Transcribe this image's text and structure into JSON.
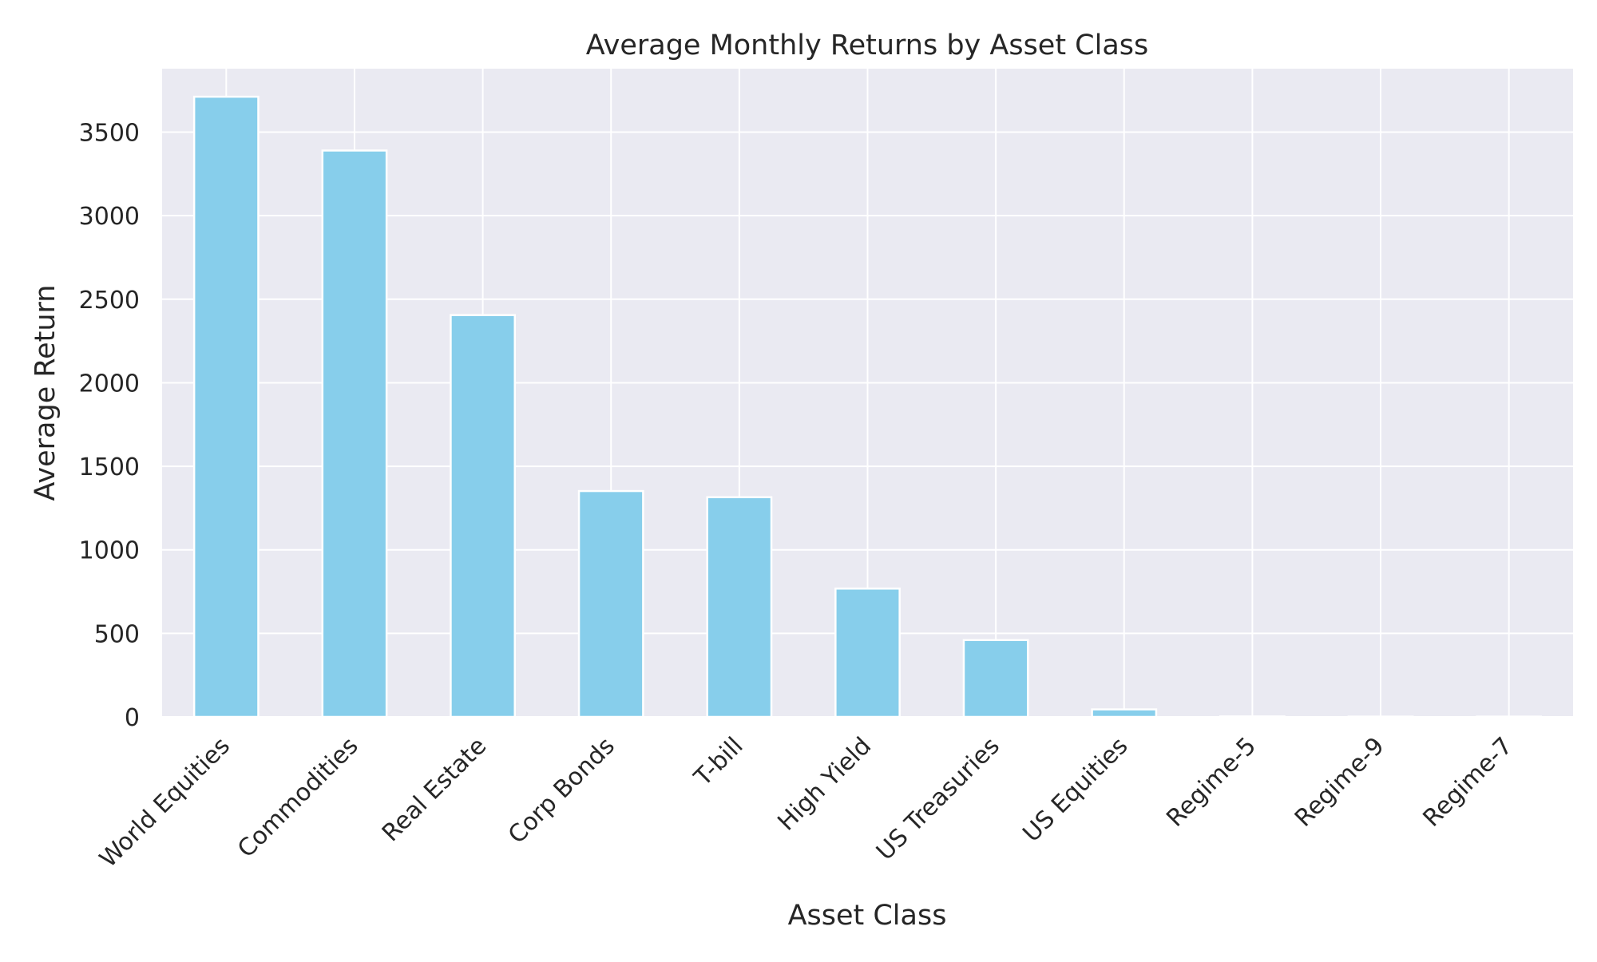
{
  "chart_data": {
    "type": "bar",
    "title": "Average Monthly Returns by Asset Class",
    "xlabel": "Asset Class",
    "ylabel": "Average Return",
    "categories": [
      "World Equities",
      "Commodities",
      "Real Estate",
      "Corp Bonds",
      "T-bill",
      "High Yield",
      "US Treasuries",
      "US Equities",
      "Regime-5",
      "Regime-9",
      "Regime-7"
    ],
    "values": [
      3712,
      3390,
      2405,
      1352,
      1315,
      768,
      460,
      45,
      3,
      2,
      2
    ],
    "ylim": [
      0,
      3880
    ],
    "yticks": [
      0,
      500,
      1000,
      1500,
      2000,
      2500,
      3000,
      3500
    ],
    "grid": true,
    "legend": "none",
    "colors": {
      "bar": "#87ceeb",
      "plot_background": "#eaeaf2",
      "grid": "#ffffff",
      "text": "#262626"
    }
  }
}
